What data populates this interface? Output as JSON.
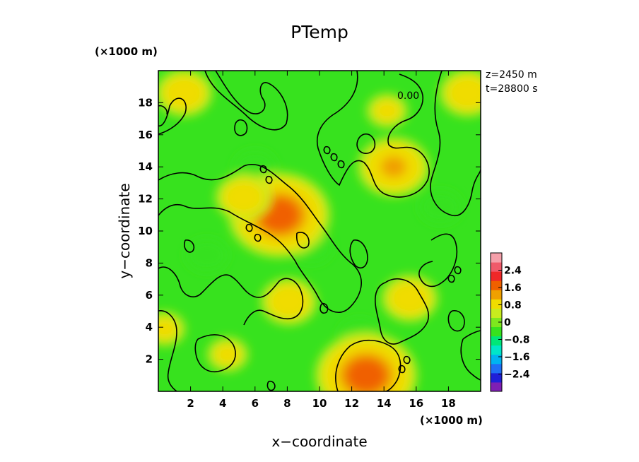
{
  "chart_data": {
    "type": "heatmap",
    "title": "PTemp",
    "xlabel": "x−coordinate",
    "ylabel": "y−coordinate",
    "x_multiplier": "(×1000 m)",
    "y_multiplier": "(×1000 m)",
    "xlim": [
      0,
      20
    ],
    "ylim": [
      0,
      20
    ],
    "xticks": [
      2,
      4,
      6,
      8,
      10,
      12,
      14,
      16,
      18
    ],
    "yticks": [
      2,
      4,
      6,
      8,
      10,
      12,
      14,
      16,
      18
    ],
    "annotations": [
      "z=2450  m",
      "t=28800  s"
    ],
    "contour_label": "0.00",
    "contour_level": 0,
    "colorbar": {
      "range": [
        -3.2,
        3.2
      ],
      "ticks": [
        2.4,
        1.6,
        0.8,
        0,
        -0.8,
        -1.6,
        -2.4
      ],
      "tick_labels": [
        "2.4",
        "1.6",
        "0.8",
        "0",
        "−0.8",
        "−1.6",
        "−2.4"
      ],
      "colors": [
        "#7e1fb4",
        "#1f1fd8",
        "#1f6ff5",
        "#00b4f0",
        "#00e6c8",
        "#00e678",
        "#37e21e",
        "#7ee81e",
        "#c8ec1e",
        "#f0dc00",
        "#f0a000",
        "#f06000",
        "#ef2828",
        "#f05a6a",
        "#f5a0aa"
      ]
    },
    "warm_spots": [
      {
        "x": 7.5,
        "y": 11.0,
        "peak": 1.9
      },
      {
        "x": 12.9,
        "y": 1.0,
        "peak": 1.8
      },
      {
        "x": 14.6,
        "y": 14.0,
        "peak": 1.2
      },
      {
        "x": 15.6,
        "y": 5.8,
        "peak": 0.9
      },
      {
        "x": 8.1,
        "y": 5.6,
        "peak": 0.9
      },
      {
        "x": 4.3,
        "y": 2.3,
        "peak": 0.8
      },
      {
        "x": 1.6,
        "y": 18.6,
        "peak": 0.9
      },
      {
        "x": 19.2,
        "y": 18.6,
        "peak": 0.9
      },
      {
        "x": 5.3,
        "y": 12.1,
        "peak": 0.9
      },
      {
        "x": 14.2,
        "y": 17.5,
        "peak": 0.7
      },
      {
        "x": 0.4,
        "y": 3.9,
        "peak": 0.7
      }
    ]
  }
}
